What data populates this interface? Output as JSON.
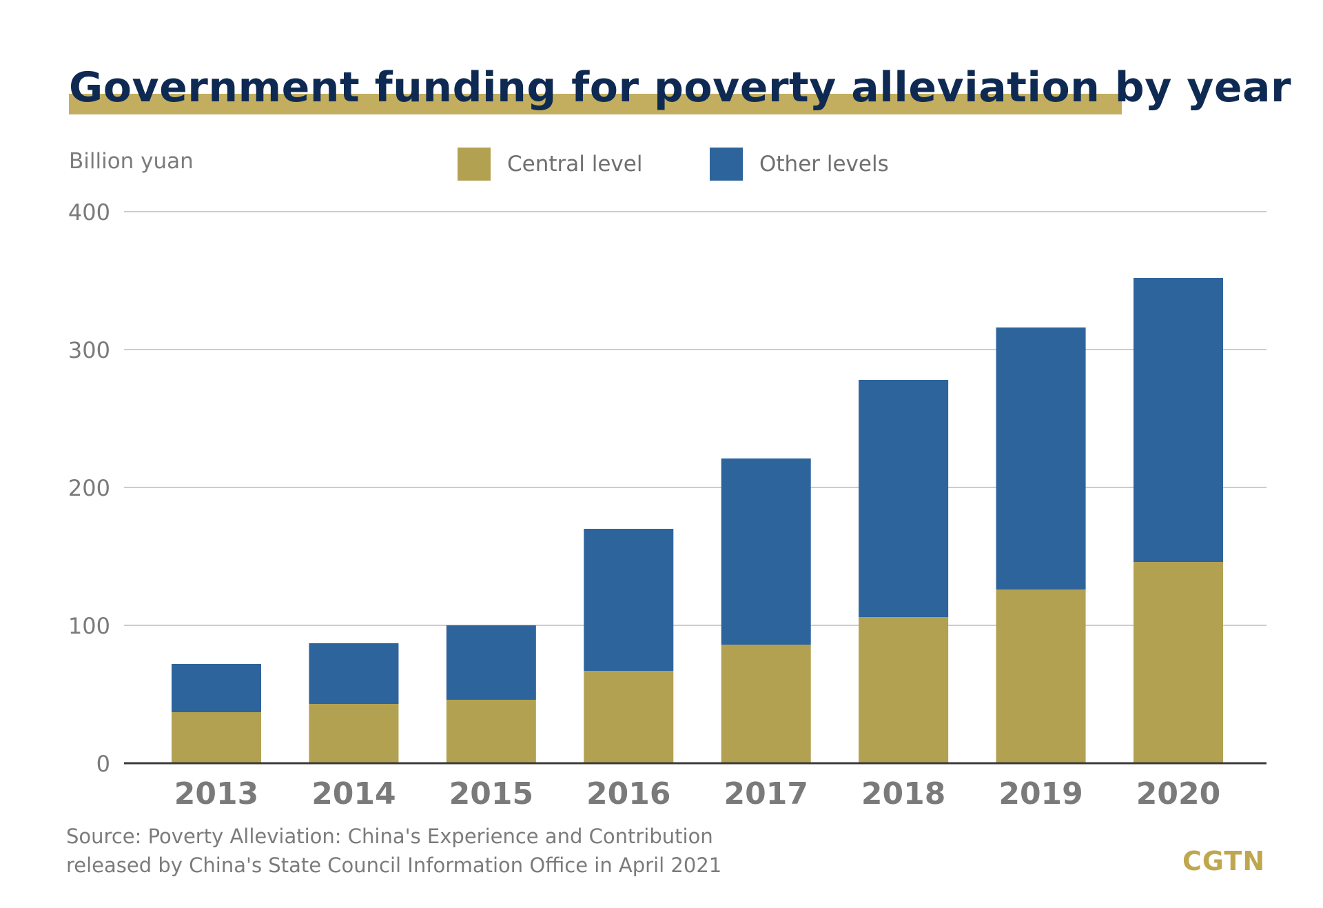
{
  "title": "Government funding for poverty alleviation by year",
  "unit_label": "Billion yuan",
  "source_lines": [
    "Source: Poverty Alleviation: China's Experience and Contribution",
    "released by China's State Council Information Office in April 2021"
  ],
  "logo": "CGTN",
  "colors": {
    "title_text": "#0f2a52",
    "title_band": "#c2ae5e",
    "central": "#b3a152",
    "other": "#2e649c",
    "grid": "#cccccc",
    "axis": "#3a3a3a",
    "tick_text": "#7a7a7a",
    "logo": "#bfa74f"
  },
  "chart_data": {
    "type": "bar",
    "stacked": true,
    "categories": [
      "2013",
      "2014",
      "2015",
      "2016",
      "2017",
      "2018",
      "2019",
      "2020"
    ],
    "series": [
      {
        "name": "Central level",
        "color": "#b3a152",
        "values": [
          37,
          43,
          46,
          67,
          86,
          106,
          126,
          146
        ]
      },
      {
        "name": "Other levels",
        "color": "#2e649c",
        "values": [
          35,
          44,
          54,
          103,
          135,
          172,
          190,
          206
        ]
      }
    ],
    "ylabel": "Billion yuan",
    "ylim": [
      0,
      400
    ],
    "yticks": [
      0,
      100,
      200,
      300,
      400
    ],
    "grid": true,
    "legend_position": "top-center"
  }
}
